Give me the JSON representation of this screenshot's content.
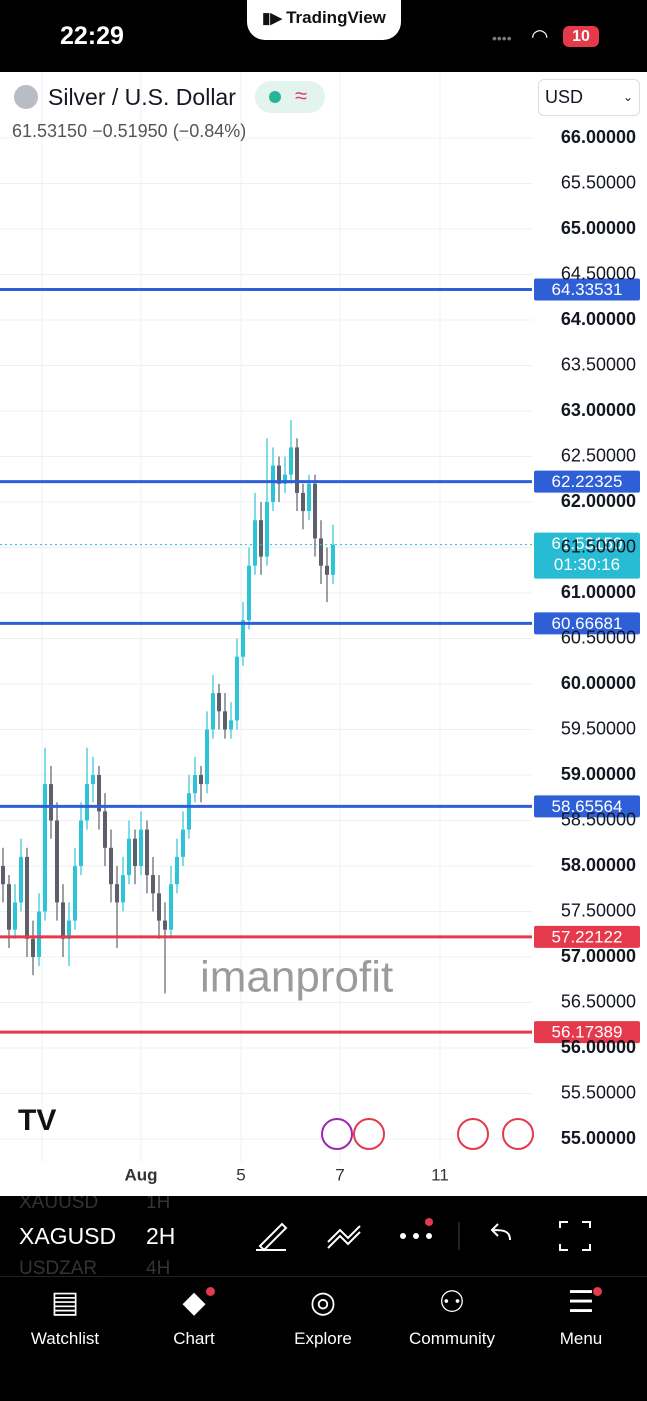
{
  "status": {
    "time": "22:29",
    "battery": "10"
  },
  "brand": "TradingView",
  "header": {
    "symbol": "Silver / U.S. Dollar",
    "last": "61.53150",
    "change": "−0.51950",
    "change_pct": "(−0.84%)",
    "currency": "USD"
  },
  "chart": {
    "up_color": "#2ec4d8",
    "down_color": "#5d606b",
    "price_ticks": [
      {
        "value": 66,
        "label": "66.00000"
      },
      {
        "value": 65.5,
        "label": "65.50000"
      },
      {
        "value": 65,
        "label": "65.00000"
      },
      {
        "value": 64.5,
        "label": "64.50000"
      },
      {
        "value": 64,
        "label": "64.00000"
      },
      {
        "value": 63.5,
        "label": "63.50000"
      },
      {
        "value": 63,
        "label": "63.00000"
      },
      {
        "value": 62.5,
        "label": "62.50000"
      },
      {
        "value": 62,
        "label": "62.00000"
      },
      {
        "value": 61.5,
        "label": "61.50000"
      },
      {
        "value": 61,
        "label": "61.00000"
      },
      {
        "value": 60.5,
        "label": "60.50000"
      },
      {
        "value": 60,
        "label": "60.00000"
      },
      {
        "value": 59.5,
        "label": "59.50000"
      },
      {
        "value": 59,
        "label": "59.00000"
      },
      {
        "value": 58.5,
        "label": "58.50000"
      },
      {
        "value": 58,
        "label": "58.00000"
      },
      {
        "value": 57.5,
        "label": "57.50000"
      },
      {
        "value": 57,
        "label": "57.00000"
      },
      {
        "value": 56.5,
        "label": "56.50000"
      },
      {
        "value": 56,
        "label": "56.00000"
      },
      {
        "value": 55.5,
        "label": "55.50000"
      },
      {
        "value": 55,
        "label": "55.00000"
      }
    ],
    "x_ticks": [
      "Aug",
      "5",
      "7",
      "11"
    ],
    "levels": [
      {
        "value": 64.33531,
        "color": "#2f5fd6"
      },
      {
        "value": 62.22325,
        "color": "#2f5fd6"
      },
      {
        "value": 60.66681,
        "color": "#2f5fd6"
      },
      {
        "value": 58.65564,
        "color": "#2f5fd6"
      },
      {
        "value": 57.22122,
        "color": "#e5394c"
      },
      {
        "value": 56.17389,
        "color": "#e5394c"
      }
    ],
    "last": {
      "value": 61.5315,
      "label": "61.53150",
      "countdown": "01:30:16",
      "color": "#27bcd3"
    },
    "watermark": "imanprofit",
    "candles": [
      [
        58.0,
        58.2,
        57.6,
        57.8
      ],
      [
        57.8,
        57.9,
        57.1,
        57.3
      ],
      [
        57.3,
        57.8,
        57.2,
        57.6
      ],
      [
        57.6,
        58.3,
        57.5,
        58.1
      ],
      [
        58.1,
        58.2,
        57.0,
        57.2
      ],
      [
        57.2,
        57.4,
        56.8,
        57.0
      ],
      [
        57.0,
        57.7,
        56.9,
        57.5
      ],
      [
        57.5,
        59.3,
        57.4,
        58.9
      ],
      [
        58.9,
        59.1,
        58.3,
        58.5
      ],
      [
        58.5,
        58.7,
        57.4,
        57.6
      ],
      [
        57.6,
        57.8,
        57.0,
        57.2
      ],
      [
        57.2,
        57.6,
        56.9,
        57.4
      ],
      [
        57.4,
        58.2,
        57.3,
        58.0
      ],
      [
        58.0,
        58.7,
        57.9,
        58.5
      ],
      [
        58.5,
        59.3,
        58.4,
        58.9
      ],
      [
        58.9,
        59.2,
        58.7,
        59.0
      ],
      [
        59.0,
        59.1,
        58.4,
        58.6
      ],
      [
        58.6,
        58.8,
        58.0,
        58.2
      ],
      [
        58.2,
        58.4,
        57.6,
        57.8
      ],
      [
        57.8,
        58.0,
        57.1,
        57.6
      ],
      [
        57.6,
        58.1,
        57.5,
        57.9
      ],
      [
        57.9,
        58.5,
        57.8,
        58.3
      ],
      [
        58.3,
        58.4,
        57.8,
        58.0
      ],
      [
        58.0,
        58.6,
        57.9,
        58.4
      ],
      [
        58.4,
        58.5,
        57.7,
        57.9
      ],
      [
        57.9,
        58.1,
        57.5,
        57.7
      ],
      [
        57.7,
        57.9,
        57.2,
        57.4
      ],
      [
        57.4,
        57.6,
        56.6,
        57.3
      ],
      [
        57.3,
        58.0,
        57.2,
        57.8
      ],
      [
        57.8,
        58.3,
        57.7,
        58.1
      ],
      [
        58.1,
        58.6,
        58.0,
        58.4
      ],
      [
        58.4,
        59.0,
        58.3,
        58.8
      ],
      [
        58.8,
        59.2,
        58.7,
        59.0
      ],
      [
        59.0,
        59.1,
        58.7,
        58.9
      ],
      [
        58.9,
        59.7,
        58.8,
        59.5
      ],
      [
        59.5,
        60.1,
        59.4,
        59.9
      ],
      [
        59.9,
        60.0,
        59.5,
        59.7
      ],
      [
        59.7,
        59.9,
        59.4,
        59.5
      ],
      [
        59.5,
        59.8,
        59.4,
        59.6
      ],
      [
        59.6,
        60.5,
        59.5,
        60.3
      ],
      [
        60.3,
        60.9,
        60.2,
        60.7
      ],
      [
        60.7,
        61.5,
        60.6,
        61.3
      ],
      [
        61.3,
        62.1,
        61.2,
        61.8
      ],
      [
        61.8,
        62.0,
        61.2,
        61.4
      ],
      [
        61.4,
        62.7,
        61.3,
        62.0
      ],
      [
        62.0,
        62.6,
        61.9,
        62.4
      ],
      [
        62.4,
        62.5,
        62.0,
        62.2
      ],
      [
        62.2,
        62.5,
        62.1,
        62.3
      ],
      [
        62.3,
        62.9,
        62.2,
        62.6
      ],
      [
        62.6,
        62.7,
        61.9,
        62.1
      ],
      [
        62.1,
        62.2,
        61.7,
        61.9
      ],
      [
        61.9,
        62.3,
        61.8,
        62.2
      ],
      [
        62.2,
        62.3,
        61.4,
        61.6
      ],
      [
        61.6,
        61.8,
        61.1,
        61.3
      ],
      [
        61.3,
        61.5,
        60.9,
        61.2
      ],
      [
        61.2,
        61.75,
        61.1,
        61.5315
      ]
    ]
  },
  "toolbar": {
    "symbols": [
      "XAUUSD",
      "XAGUSD",
      "USDZAR"
    ],
    "intervals": [
      "1H",
      "2H",
      "4H"
    ]
  },
  "nav": [
    "Watchlist",
    "Chart",
    "Explore",
    "Community",
    "Menu"
  ]
}
